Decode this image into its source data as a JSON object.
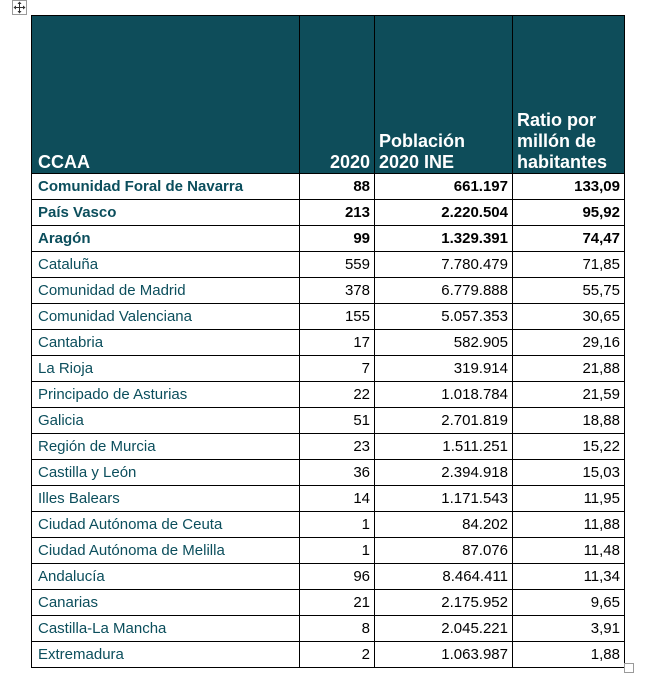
{
  "table": {
    "headers": {
      "ccaa": "CCAA",
      "year": "2020",
      "population": "Población 2020 INE",
      "ratio": "Ratio por millón de habitantes"
    },
    "rows": [
      {
        "name": "Comunidad Foral de Navarra",
        "value": "88",
        "population": "661.197",
        "ratio": "133,09",
        "bold": true
      },
      {
        "name": "País Vasco",
        "value": "213",
        "population": "2.220.504",
        "ratio": "95,92",
        "bold": true
      },
      {
        "name": "Aragón",
        "value": "99",
        "population": "1.329.391",
        "ratio": "74,47",
        "bold": true
      },
      {
        "name": "Cataluña",
        "value": "559",
        "population": "7.780.479",
        "ratio": "71,85",
        "bold": false
      },
      {
        "name": "Comunidad de Madrid",
        "value": "378",
        "population": "6.779.888",
        "ratio": "55,75",
        "bold": false
      },
      {
        "name": "Comunidad Valenciana",
        "value": "155",
        "population": "5.057.353",
        "ratio": "30,65",
        "bold": false
      },
      {
        "name": "Cantabria",
        "value": "17",
        "population": "582.905",
        "ratio": "29,16",
        "bold": false
      },
      {
        "name": "La Rioja",
        "value": "7",
        "population": "319.914",
        "ratio": "21,88",
        "bold": false
      },
      {
        "name": "Principado de Asturias",
        "value": "22",
        "population": "1.018.784",
        "ratio": "21,59",
        "bold": false
      },
      {
        "name": "Galicia",
        "value": "51",
        "population": "2.701.819",
        "ratio": "18,88",
        "bold": false
      },
      {
        "name": "Región de Murcia",
        "value": "23",
        "population": "1.511.251",
        "ratio": "15,22",
        "bold": false
      },
      {
        "name": "Castilla y León",
        "value": "36",
        "population": "2.394.918",
        "ratio": "15,03",
        "bold": false
      },
      {
        "name": "Illes Balears",
        "value": "14",
        "population": "1.171.543",
        "ratio": "11,95",
        "bold": false
      },
      {
        "name": "Ciudad Autónoma de Ceuta",
        "value": "1",
        "population": "84.202",
        "ratio": "11,88",
        "bold": false
      },
      {
        "name": "Ciudad Autónoma de Melilla",
        "value": "1",
        "population": "87.076",
        "ratio": "11,48",
        "bold": false
      },
      {
        "name": "Andalucía",
        "value": "96",
        "population": "8.464.411",
        "ratio": "11,34",
        "bold": false
      },
      {
        "name": "Canarias",
        "value": "21",
        "population": "2.175.952",
        "ratio": "9,65",
        "bold": false
      },
      {
        "name": "Castilla-La Mancha",
        "value": "8",
        "population": "2.045.221",
        "ratio": "3,91",
        "bold": false
      },
      {
        "name": "Extremadura",
        "value": "2",
        "population": "1.063.987",
        "ratio": "1,88",
        "bold": false
      }
    ]
  },
  "colors": {
    "header_bg": "#0e4d5a",
    "header_text": "#ffffff",
    "name_text": "#0b4e5c"
  },
  "icons": {
    "move_handle": "move-arrows-icon",
    "resize_handle": "resize-handle-icon"
  }
}
